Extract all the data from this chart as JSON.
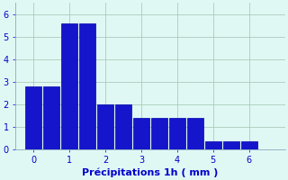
{
  "bar_positions": [
    0,
    0.5,
    1,
    1.5,
    2,
    2.5,
    3,
    3.5,
    4,
    4.5,
    5,
    5.5,
    6
  ],
  "bar_heights": [
    2.8,
    2.8,
    5.6,
    5.6,
    2.0,
    2.0,
    1.4,
    1.4,
    1.4,
    1.4,
    0.35,
    0.35,
    0.35
  ],
  "bar_width": 0.45,
  "bar_color": "#1515CC",
  "bar_edgecolor": "#0000AA",
  "background_color": "#E0F8F4",
  "grid_color": "#AACCBB",
  "xlabel": "Précipitations 1h ( mm )",
  "xlabel_color": "#0000CC",
  "xlabel_fontsize": 8,
  "ylabel_ticks": [
    0,
    1,
    2,
    3,
    4,
    5,
    6
  ],
  "xlabel_ticks": [
    0,
    1,
    2,
    3,
    4,
    5,
    6
  ],
  "xlim": [
    -0.5,
    7.0
  ],
  "ylim": [
    0,
    6.5
  ],
  "tick_color": "#0000CC",
  "tick_fontsize": 7,
  "spine_color": "#88AABB",
  "figsize": [
    3.2,
    2.0
  ],
  "dpi": 100
}
